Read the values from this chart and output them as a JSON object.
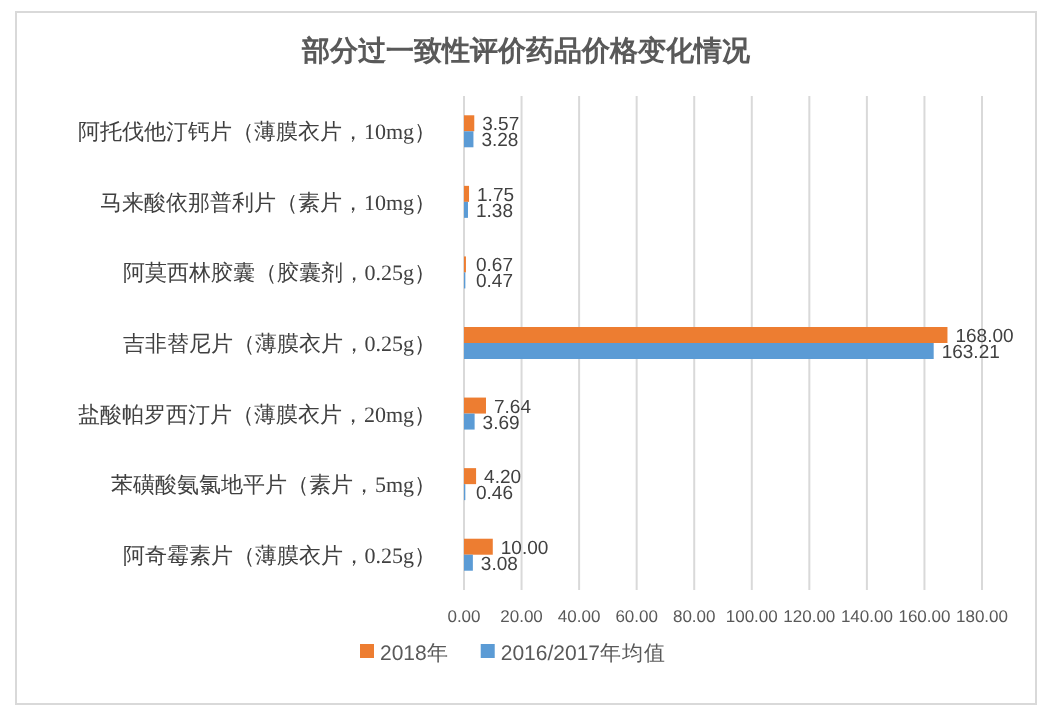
{
  "chart_data": {
    "type": "bar",
    "orientation": "horizontal",
    "title": "部分过一致性评价药品价格变化情况",
    "categories": [
      "阿托伐他汀钙片（薄膜衣片，10mg）",
      "马来酸依那普利片（素片，10mg）",
      "阿莫西林胶囊（胶囊剂，0.25g）",
      "吉非替尼片（薄膜衣片，0.25g）",
      "盐酸帕罗西汀片（薄膜衣片，20mg）",
      "苯磺酸氨氯地平片（素片，5mg）",
      "阿奇霉素片（薄膜衣片，0.25g）"
    ],
    "series": [
      {
        "name": "2018年",
        "color": "#ed7d31",
        "values": [
          3.57,
          1.75,
          0.67,
          168.0,
          7.64,
          4.2,
          10.0
        ],
        "value_labels": [
          "3.57",
          "1.75",
          "0.67",
          "168.00",
          "7.64",
          "4.20",
          "10.00"
        ]
      },
      {
        "name": "2016/2017年均值",
        "color": "#5b9bd5",
        "values": [
          3.28,
          1.38,
          0.47,
          163.21,
          3.69,
          0.46,
          3.08
        ],
        "value_labels": [
          "3.28",
          "1.38",
          "0.47",
          "163.21",
          "3.69",
          "0.46",
          "3.08"
        ]
      }
    ],
    "xlim": [
      0,
      180
    ],
    "xticks": [
      {
        "value": 0,
        "label": "0.00"
      },
      {
        "value": 20,
        "label": "20.00"
      },
      {
        "value": 40,
        "label": "40.00"
      },
      {
        "value": 60,
        "label": "60.00"
      },
      {
        "value": 80,
        "label": "80.00"
      },
      {
        "value": 100,
        "label": "100.00"
      },
      {
        "value": 120,
        "label": "120.00"
      },
      {
        "value": 140,
        "label": "140.00"
      },
      {
        "value": 160,
        "label": "160.00"
      },
      {
        "value": 180,
        "label": "180.00"
      }
    ],
    "grid": "x",
    "legend": "bottom"
  }
}
